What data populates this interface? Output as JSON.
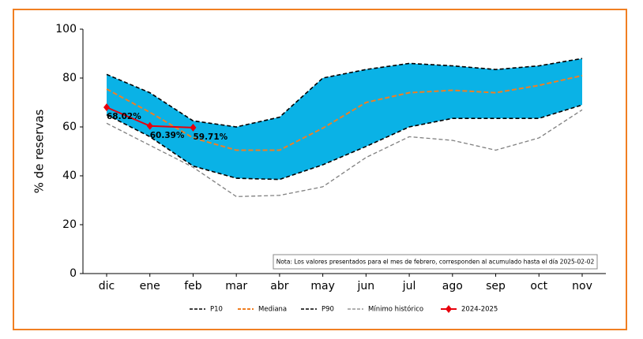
{
  "chart_data": {
    "type": "line",
    "y_label": "% de reservas",
    "note": "Nota: Los valores presentados para el mes de febrero, corresponden al acumulado hasta el día 2025-02-02",
    "categories": [
      "dic",
      "ene",
      "feb",
      "mar",
      "abr",
      "may",
      "jun",
      "jul",
      "ago",
      "sep",
      "oct",
      "nov"
    ],
    "series": [
      {
        "name": "P10",
        "color": "#000000",
        "values": [
          65,
          56,
          44,
          39,
          38.5,
          44.5,
          52,
          60,
          63.5,
          63.5,
          63.5,
          69
        ]
      },
      {
        "name": "Mediana",
        "color": "#f07f22",
        "values": [
          75.5,
          66,
          55.5,
          50.5,
          50.5,
          59.5,
          70,
          74,
          75,
          74,
          77,
          81
        ]
      },
      {
        "name": "P90",
        "color": "#000000",
        "values": [
          81.5,
          74,
          62.5,
          60,
          64,
          80,
          83.5,
          86,
          85,
          83.5,
          85,
          88
        ]
      },
      {
        "name": "Mínimo histórico",
        "color": "#808080",
        "values": [
          61.5,
          52.5,
          43.5,
          31.5,
          32,
          35.5,
          47.5,
          56,
          54.5,
          50.5,
          55.5,
          67
        ]
      },
      {
        "name": "2024-2025",
        "color": "#e8000b",
        "values": [
          68.02,
          60.39,
          59.71,
          null,
          null,
          null,
          null,
          null,
          null,
          null,
          null,
          null
        ],
        "value_labels": [
          "68.02%",
          "60.39%",
          "59.71%",
          null,
          null,
          null,
          null,
          null,
          null,
          null,
          null,
          null
        ]
      }
    ],
    "band_color": "#0ab2e6",
    "ylim": [
      0,
      100
    ],
    "yticks": [
      0,
      20,
      40,
      60,
      80,
      100
    ],
    "grid": false
  }
}
